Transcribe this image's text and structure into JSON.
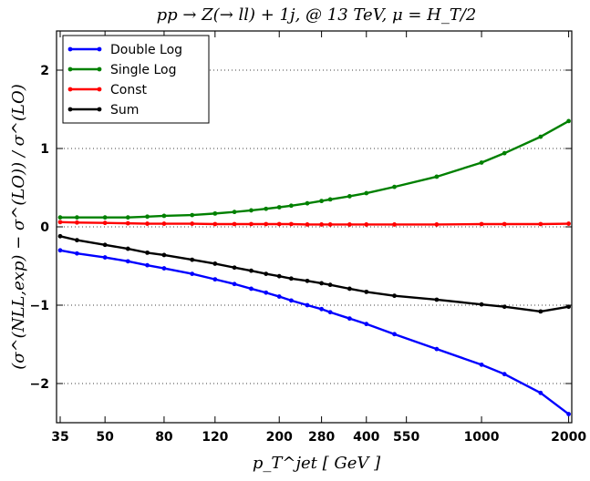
{
  "chart_data": {
    "type": "line",
    "title": "pp → Z(→ ll) + 1j, @ 13 TeV, μ = H_T/2",
    "xlabel": "p_T^jet [ GeV ]",
    "ylabel": "(σ^(NLL,exp) − σ^(LO)) / σ^(LO)",
    "x_scale": "log",
    "xlim": [
      34,
      2050
    ],
    "ylim": [
      -2.5,
      2.5
    ],
    "x_ticks": [
      35,
      50,
      80,
      120,
      200,
      280,
      400,
      550,
      1000,
      2000
    ],
    "x_tick_labels": [
      "35",
      "50",
      "80",
      "120",
      "200",
      "280",
      "400",
      "550",
      "1000",
      "2000"
    ],
    "y_ticks": [
      -2,
      -1,
      0,
      1,
      2
    ],
    "y_tick_labels": [
      "−2",
      "−1",
      "0",
      "1",
      "2"
    ],
    "grid": "horizontal dotted",
    "legend_position": "top-left",
    "x": [
      35,
      40,
      50,
      60,
      70,
      80,
      100,
      120,
      140,
      160,
      180,
      200,
      220,
      250,
      280,
      300,
      350,
      400,
      500,
      700,
      1000,
      1200,
      1600,
      2000
    ],
    "series": [
      {
        "name": "Double Log",
        "color": "#0000ff",
        "values": [
          -0.3,
          -0.34,
          -0.39,
          -0.44,
          -0.49,
          -0.53,
          -0.6,
          -0.67,
          -0.73,
          -0.79,
          -0.84,
          -0.89,
          -0.94,
          -1.0,
          -1.05,
          -1.09,
          -1.17,
          -1.24,
          -1.37,
          -1.56,
          -1.76,
          -1.88,
          -2.12,
          -2.39
        ]
      },
      {
        "name": "Single Log",
        "color": "#008000",
        "values": [
          0.12,
          0.12,
          0.12,
          0.12,
          0.13,
          0.14,
          0.15,
          0.17,
          0.19,
          0.21,
          0.23,
          0.25,
          0.27,
          0.3,
          0.33,
          0.35,
          0.39,
          0.43,
          0.51,
          0.64,
          0.82,
          0.94,
          1.15,
          1.35
        ]
      },
      {
        "name": "Const",
        "color": "#ff0000",
        "values": [
          0.06,
          0.055,
          0.05,
          0.045,
          0.04,
          0.04,
          0.04,
          0.035,
          0.035,
          0.035,
          0.035,
          0.035,
          0.035,
          0.03,
          0.03,
          0.03,
          0.03,
          0.03,
          0.03,
          0.03,
          0.035,
          0.035,
          0.035,
          0.04
        ]
      },
      {
        "name": "Sum",
        "color": "#000000",
        "values": [
          -0.12,
          -0.17,
          -0.23,
          -0.28,
          -0.33,
          -0.36,
          -0.42,
          -0.47,
          -0.52,
          -0.56,
          -0.6,
          -0.63,
          -0.66,
          -0.69,
          -0.72,
          -0.74,
          -0.79,
          -0.83,
          -0.88,
          -0.93,
          -0.99,
          -1.02,
          -1.08,
          -1.02
        ]
      }
    ]
  }
}
